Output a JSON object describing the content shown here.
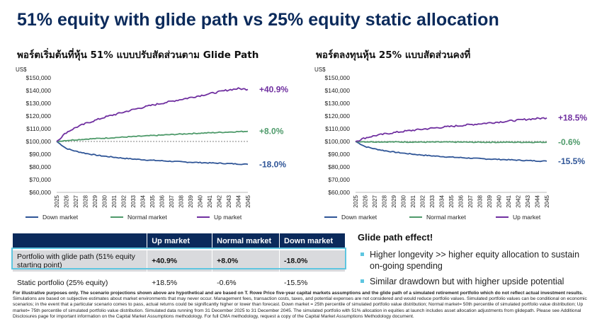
{
  "title": "51% equity with glide path vs 25% equity static allocation",
  "chart_data": [
    {
      "type": "line",
      "title": "พอร์ตเริ่มต้นที่หุ้น 51% แบบปรับสัดส่วนตาม Glide Path",
      "ylabel": "US$",
      "xlabel": "",
      "ylim": [
        60000,
        150000
      ],
      "yticks": [
        60000,
        70000,
        80000,
        90000,
        100000,
        110000,
        120000,
        130000,
        140000,
        150000
      ],
      "ytick_labels": [
        "$60,000",
        "$70,000",
        "$80,000",
        "$90,000",
        "$100,000",
        "$110,000",
        "$120,000",
        "$130,000",
        "$140,000",
        "$150,000"
      ],
      "x": [
        "2025",
        "2026",
        "2027",
        "2028",
        "2029",
        "2030",
        "2031",
        "2032",
        "2033",
        "2034",
        "2035",
        "2036",
        "2037",
        "2038",
        "2039",
        "2040",
        "2041",
        "2042",
        "2043",
        "2044",
        "2045"
      ],
      "baseline": 100000,
      "grid": false,
      "legend": "bottom",
      "series": [
        {
          "name": "Down market",
          "color": "#2f5597",
          "end_label": "-18.0%",
          "values": [
            100000,
            94500,
            92300,
            90700,
            89400,
            88400,
            87600,
            86800,
            86200,
            85700,
            85200,
            84800,
            84400,
            84000,
            83700,
            83400,
            83100,
            82900,
            82600,
            82300,
            82000
          ]
        },
        {
          "name": "Normal market",
          "color": "#4e9a6a",
          "end_label": "+8.0%",
          "values": [
            100000,
            100800,
            101300,
            101800,
            102200,
            102600,
            103000,
            103400,
            103800,
            104200,
            104600,
            105000,
            105400,
            105800,
            106200,
            106500,
            106800,
            107100,
            107400,
            107700,
            108000
          ]
        },
        {
          "name": "Up market",
          "color": "#7030a0",
          "end_label": "+40.9%",
          "values": [
            100000,
            107000,
            111000,
            114000,
            116500,
            119000,
            121000,
            123000,
            125000,
            126800,
            128500,
            130000,
            131500,
            133000,
            134500,
            136000,
            137500,
            139000,
            140500,
            141500,
            140900
          ]
        }
      ]
    },
    {
      "type": "line",
      "title": "พอร์ตลงทุนหุ้น 25% แบบสัดส่วนคงที่",
      "ylabel": "US$",
      "xlabel": "",
      "ylim": [
        60000,
        150000
      ],
      "yticks": [
        60000,
        70000,
        80000,
        90000,
        100000,
        110000,
        120000,
        130000,
        140000,
        150000
      ],
      "ytick_labels": [
        "$60,000",
        "$70,000",
        "$80,000",
        "$90,000",
        "$100,000",
        "$110,000",
        "$120,000",
        "$130,000",
        "$140,000",
        "$150,000"
      ],
      "x": [
        "2025",
        "2026",
        "2027",
        "2028",
        "2029",
        "2030",
        "2031",
        "2032",
        "2033",
        "2034",
        "2035",
        "2036",
        "2037",
        "2038",
        "2039",
        "2040",
        "2041",
        "2042",
        "2043",
        "2044",
        "2045"
      ],
      "baseline": 100000,
      "grid": false,
      "legend": "bottom",
      "series": [
        {
          "name": "Down market",
          "color": "#2f5597",
          "end_label": "-15.5%",
          "values": [
            100000,
            96000,
            94200,
            92800,
            91700,
            90800,
            90000,
            89300,
            88700,
            88200,
            87700,
            87300,
            86900,
            86500,
            86200,
            85900,
            85600,
            85300,
            85000,
            84700,
            84500
          ]
        },
        {
          "name": "Normal market",
          "color": "#4e9a6a",
          "end_label": "-0.6%",
          "values": [
            100000,
            99800,
            99700,
            99700,
            99600,
            99600,
            99600,
            99500,
            99500,
            99500,
            99500,
            99500,
            99400,
            99400,
            99400,
            99400,
            99400,
            99400,
            99400,
            99400,
            99400
          ]
        },
        {
          "name": "Up market",
          "color": "#7030a0",
          "end_label": "+18.5%",
          "values": [
            100000,
            102800,
            104500,
            105800,
            106900,
            107900,
            108800,
            109600,
            110400,
            111100,
            111800,
            112500,
            113200,
            113900,
            114600,
            115300,
            116000,
            116700,
            117400,
            118000,
            118500
          ]
        }
      ]
    }
  ],
  "table": {
    "headers": [
      "",
      "Up market",
      "Normal market",
      "Down market"
    ],
    "rows": [
      {
        "label": "Portfolio with glide path (51% equity starting point)",
        "up": "+40.9%",
        "normal": "+8.0%",
        "down": "-18.0%"
      },
      {
        "label": "Static portfolio (25% equity)",
        "up": "+18.5%",
        "normal": "-0.6%",
        "down": "-15.5%"
      }
    ]
  },
  "effect": {
    "title": "Glide path effect!",
    "bullets": [
      "Higher longevity >> higher equity allocation to sustain on-going spending",
      "Similar drawdown but with higher upside potential"
    ],
    "bullet_color": "#5ec6e0"
  },
  "disclaimer": {
    "bold": "For illustrative purposes only. The scenario projections shown above are hypothetical and are based on T. Rowe Price five-year capital markets assumptions and the glide path of a simulated retirement portfolio which do not reflect actual investment results.",
    "text": "Simulations are based on subjective estimates about market environments that may never occur. Management fees, transaction costs, taxes, and potential expenses are not considered and would reduce portfolio values. Simulated portfolio values can be conditional on economic scenarios; in the event that a particular scenario comes to pass, actual returns could be significantly higher or lower than forecast. Down market = 25th percentile of simulated portfolio value distribution; Normal market= 50th percentile of simulated portfolio value distribution; Up market= 75th percentile of simulated portfolio value distribution. Simulated data running from 31 December 2025 to 31 December 2045. The simulated portfolio with 51% allocation in equities at launch includes asset allocation adjustments from glidepath. Please see Additional Disclosures page for important information on the Capital Market Assumptions methodology. For full CMA methodology, request a copy of the Capital Market Assumptions Methodology document."
  },
  "colors": {
    "title": "#0b2a5b",
    "table_header": "#0b2a5b",
    "highlight": "#5ec6e0",
    "baseline": "#9a9a9a"
  }
}
